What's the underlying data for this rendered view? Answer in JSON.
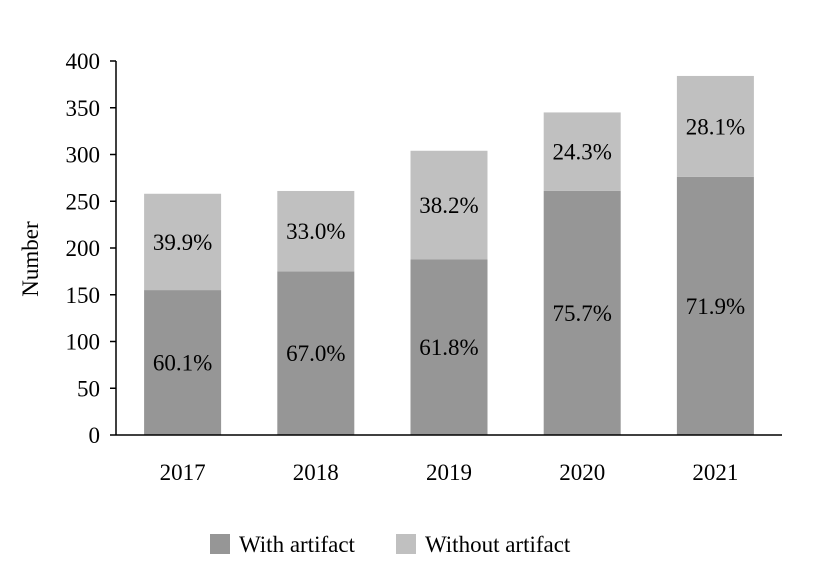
{
  "chart_data": {
    "type": "bar",
    "stacked": true,
    "categories": [
      "2017",
      "2018",
      "2019",
      "2020",
      "2021"
    ],
    "series": [
      {
        "name": "With artifact",
        "values": [
          155,
          175,
          188,
          261,
          276
        ],
        "labels": [
          "60.1%",
          "67.0%",
          "61.8%",
          "75.7%",
          "71.9%"
        ],
        "color": "#969696"
      },
      {
        "name": "Without artifact",
        "values": [
          103,
          86,
          116,
          84,
          108
        ],
        "labels": [
          "39.9%",
          "33.0%",
          "38.2%",
          "24.3%",
          "28.1%"
        ],
        "color": "#c0c0c0"
      }
    ],
    "ylabel": "Number",
    "xlabel": "",
    "ylim": [
      0,
      400
    ],
    "yticks": [
      0,
      50,
      100,
      150,
      200,
      250,
      300,
      350,
      400
    ],
    "grid": false,
    "legend": "bottom"
  }
}
